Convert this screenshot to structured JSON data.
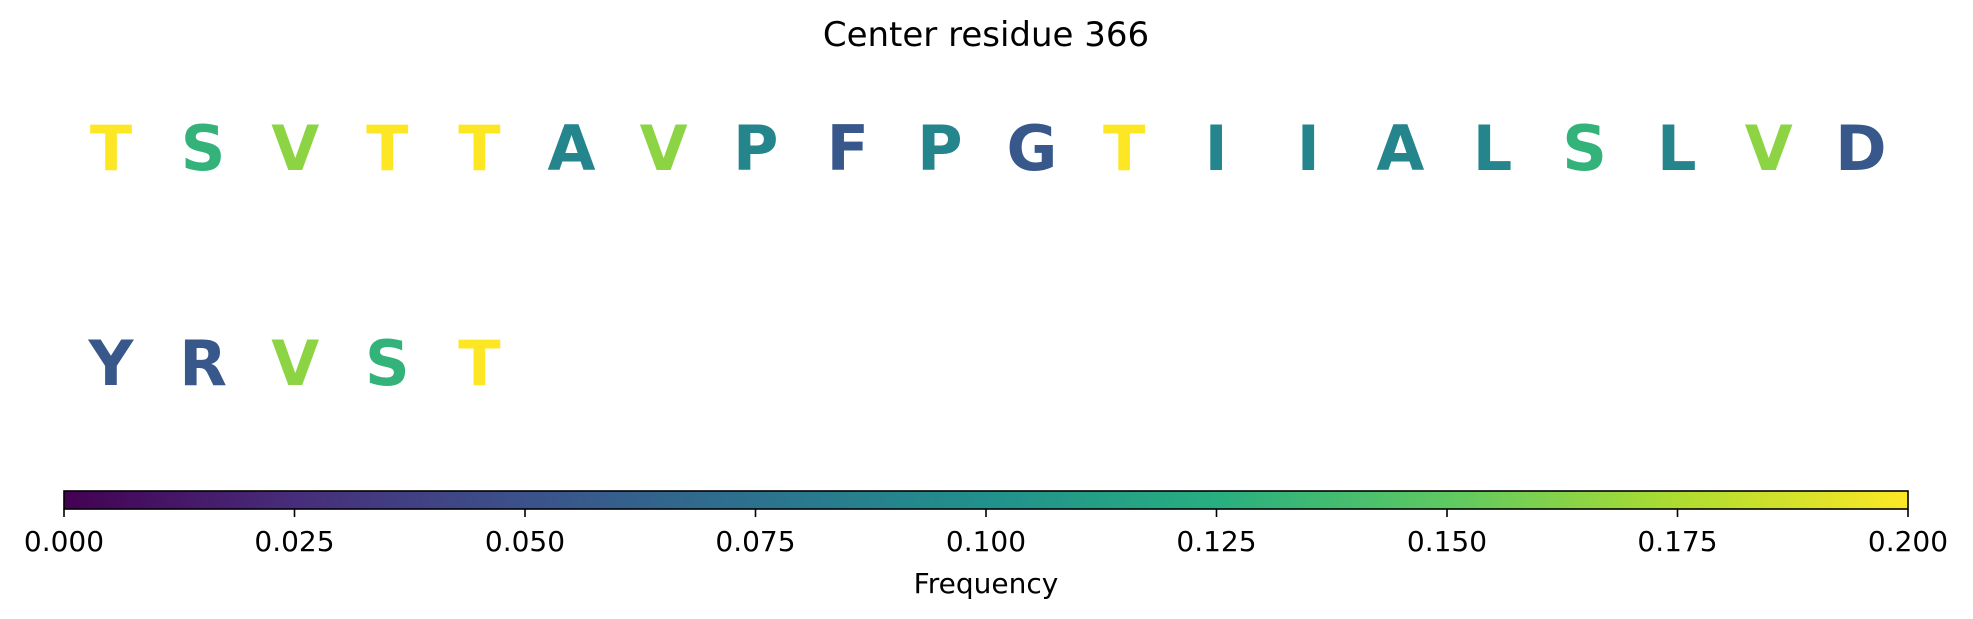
{
  "chart_data": {
    "type": "sequence-colormap",
    "title": "Center residue 366",
    "residues": [
      {
        "letter": "T",
        "frequency": 0.2
      },
      {
        "letter": "S",
        "frequency": 0.13
      },
      {
        "letter": "V",
        "frequency": 0.165
      },
      {
        "letter": "T",
        "frequency": 0.2
      },
      {
        "letter": "T",
        "frequency": 0.2
      },
      {
        "letter": "A",
        "frequency": 0.09
      },
      {
        "letter": "V",
        "frequency": 0.165
      },
      {
        "letter": "P",
        "frequency": 0.09
      },
      {
        "letter": "F",
        "frequency": 0.055
      },
      {
        "letter": "P",
        "frequency": 0.09
      },
      {
        "letter": "G",
        "frequency": 0.055
      },
      {
        "letter": "T",
        "frequency": 0.2
      },
      {
        "letter": "I",
        "frequency": 0.09
      },
      {
        "letter": "I",
        "frequency": 0.09
      },
      {
        "letter": "A",
        "frequency": 0.09
      },
      {
        "letter": "L",
        "frequency": 0.09
      },
      {
        "letter": "S",
        "frequency": 0.13
      },
      {
        "letter": "L",
        "frequency": 0.09
      },
      {
        "letter": "V",
        "frequency": 0.165
      },
      {
        "letter": "D",
        "frequency": 0.055
      },
      {
        "letter": "Y",
        "frequency": 0.055
      },
      {
        "letter": "R",
        "frequency": 0.055
      },
      {
        "letter": "V",
        "frequency": 0.165
      },
      {
        "letter": "S",
        "frequency": 0.13
      },
      {
        "letter": "T",
        "frequency": 0.2
      }
    ],
    "residues_per_row": 20,
    "colorbar": {
      "colormap": "viridis",
      "range": [
        0.0,
        0.2
      ],
      "ticks": [
        "0.000",
        "0.025",
        "0.050",
        "0.075",
        "0.100",
        "0.125",
        "0.150",
        "0.175",
        "0.200"
      ],
      "label": "Frequency",
      "orientation": "horizontal",
      "placement": "bottom"
    },
    "grid": false,
    "legend": "none"
  }
}
